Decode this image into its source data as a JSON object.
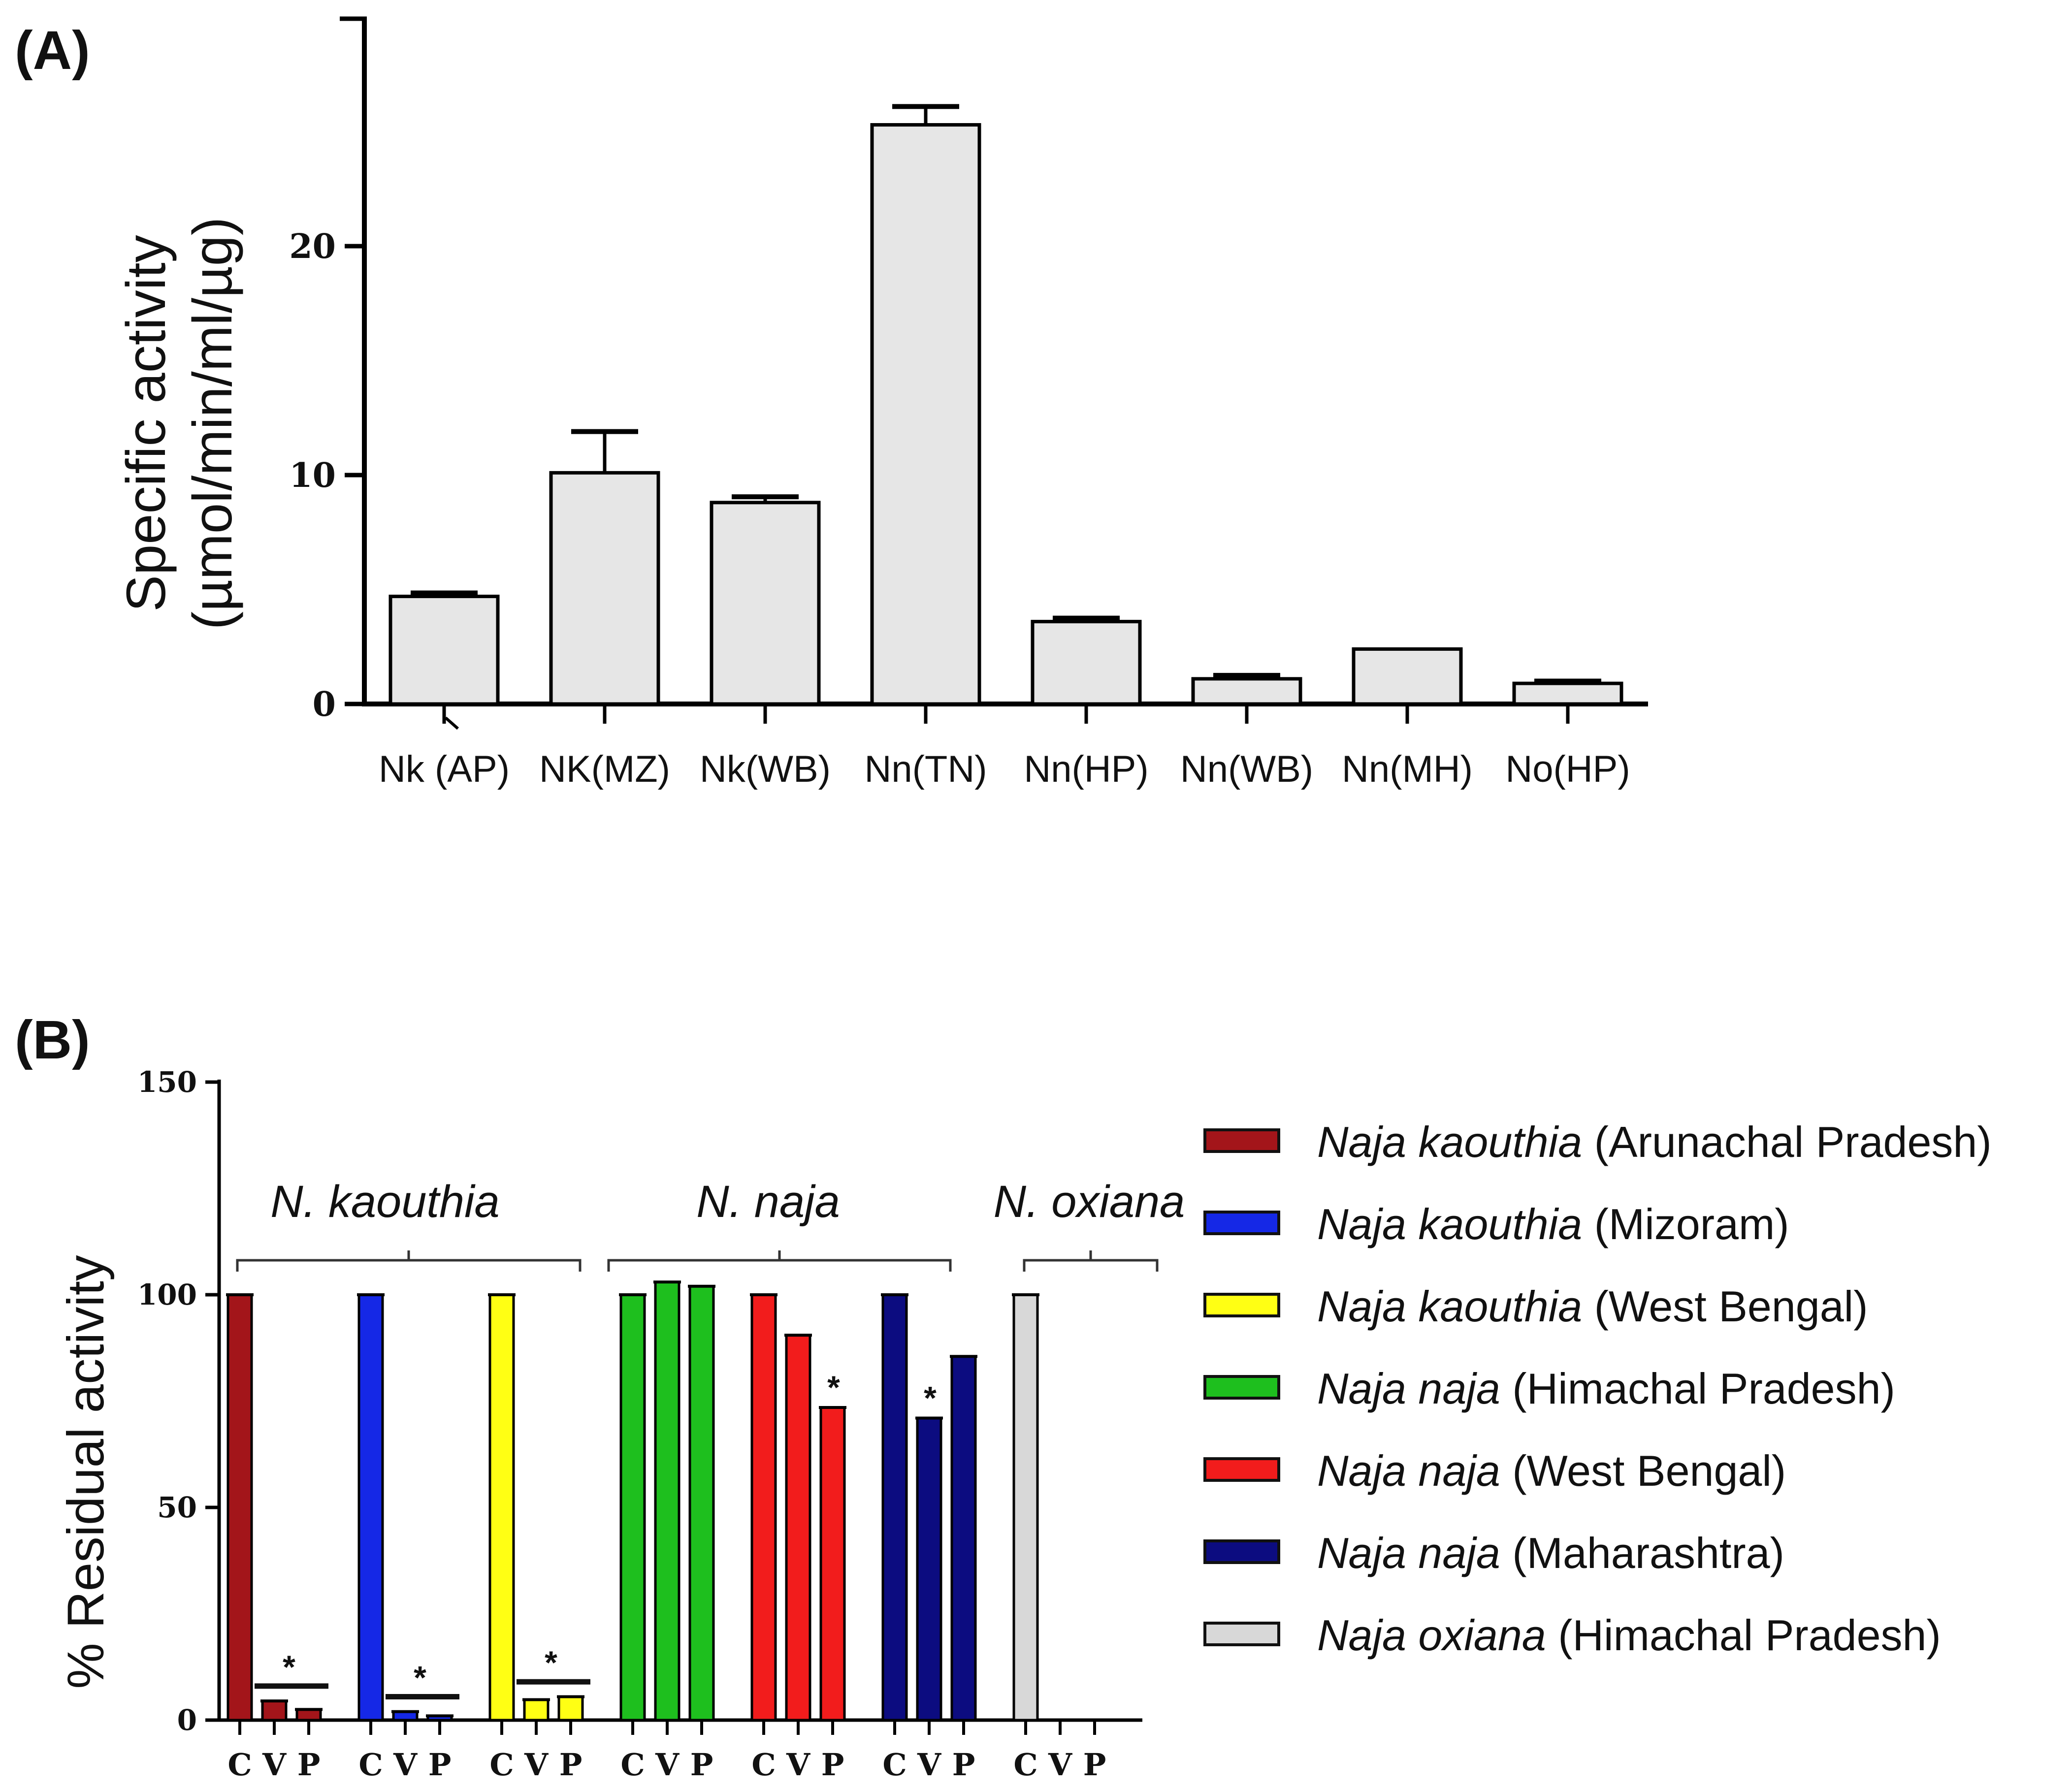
{
  "chart_data": [
    {
      "panel_label": "(A)",
      "type": "bar",
      "ylabel_line1": "Specific activity",
      "ylabel_line2": "(µmol/min/ml/µg)",
      "ylim": [
        0,
        30
      ],
      "yticks": [
        "0",
        "10",
        "20"
      ],
      "ytick_values": [
        0,
        10,
        20
      ],
      "categories": [
        "Nk (AP)",
        "NK(MZ)",
        "Nk(WB)",
        "Nn(TN)",
        "Nn(HP)",
        "Nn(WB)",
        "Nn(MH)",
        "No(HP)"
      ],
      "values": [
        4.7,
        10.1,
        8.8,
        25.3,
        3.6,
        1.1,
        2.4,
        0.9
      ],
      "errors": [
        0.15,
        1.8,
        0.25,
        0.8,
        0.15,
        0.15,
        0.0,
        0.1
      ],
      "bar_color": "#e6e6e6"
    },
    {
      "panel_label": "(B)",
      "type": "bar",
      "ylabel": "% Residual activity",
      "ylim": [
        0,
        150
      ],
      "yticks": [
        "0",
        "50",
        "100",
        "150"
      ],
      "ytick_values": [
        0,
        50,
        100,
        150
      ],
      "group_labels": [
        "N. kaouthia",
        "N. naja",
        "N. oxiana"
      ],
      "subcategories": [
        "C",
        "V",
        "P"
      ],
      "series": [
        {
          "species": "Naja kaouthia",
          "region": "(Arunachal Pradesh)",
          "color": "#a3151a",
          "values": [
            100,
            4.5,
            2.5
          ],
          "sig": [
            false,
            true,
            true
          ],
          "sig_mark": "*"
        },
        {
          "species": "Naja kaouthia",
          "region": "(Mizoram)",
          "color": "#1528e6",
          "values": [
            100,
            2.0,
            1.0
          ],
          "sig": [
            false,
            true,
            true
          ],
          "sig_mark": "*"
        },
        {
          "species": "Naja kaouthia",
          "region": "(West Bengal)",
          "color": "#ffff14",
          "values": [
            100,
            4.8,
            5.5
          ],
          "sig": [
            false,
            true,
            true
          ],
          "sig_mark": "*"
        },
        {
          "species": "Naja naja",
          "region": "(Himachal Pradesh)",
          "color": "#1ebf1e",
          "values": [
            100,
            103,
            102
          ],
          "sig": [
            false,
            false,
            false
          ],
          "sig_mark": "*"
        },
        {
          "species": "Naja naja",
          "region": "(West Bengal)",
          "color": "#f21c1c",
          "values": [
            100,
            90.5,
            73.5
          ],
          "sig": [
            false,
            false,
            true
          ],
          "sig_mark": "*"
        },
        {
          "species": "Naja naja",
          "region": "(Maharashtra)",
          "color": "#0c0c80",
          "values": [
            100,
            71,
            85.5
          ],
          "sig": [
            false,
            true,
            false
          ],
          "sig_mark": "*"
        },
        {
          "species": "Naja oxiana",
          "region": "(Himachal Pradesh)",
          "color": "#d8d8d8",
          "values": [
            100,
            0,
            0
          ],
          "sig": [
            false,
            false,
            false
          ],
          "sig_mark": "*"
        }
      ]
    }
  ]
}
